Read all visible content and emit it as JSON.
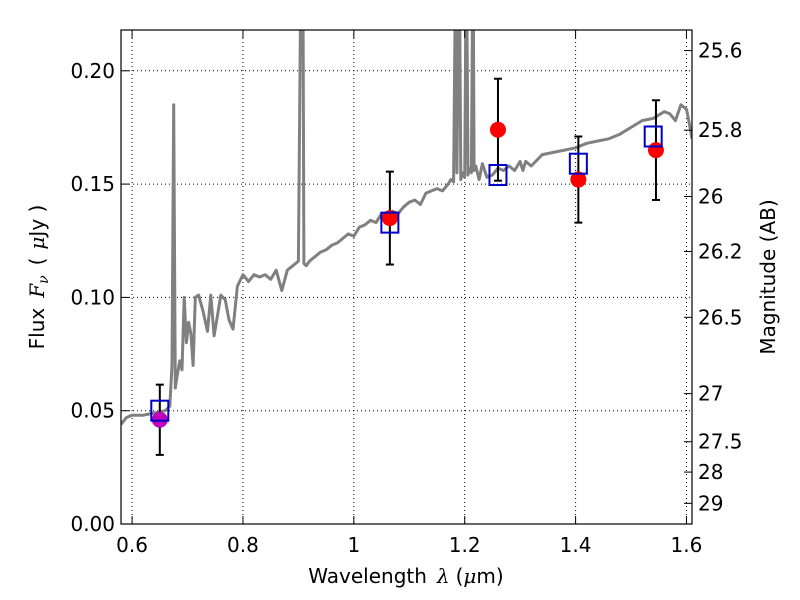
{
  "chart_data": {
    "type": "scatter",
    "xlabel_prefix": "Wavelength",
    "xlabel_symbol": "λ",
    "xlabel_unit_open": "(",
    "xlabel_unit_mu": "μ",
    "xlabel_unit_rest": "m)",
    "ylabel_prefix": "Flux",
    "ylabel_symbol": "F",
    "ylabel_symbol_sub": "ν",
    "ylabel_unit_open": "(",
    "ylabel_unit_mu": "μ",
    "ylabel_unit_rest": "Jy )",
    "ylabel_right": "Magnitude (AB)",
    "xlim": [
      0.58,
      1.61
    ],
    "ylim": [
      0.0,
      0.218
    ],
    "x_ticks": [
      0.6,
      0.8,
      1.0,
      1.2,
      1.4,
      1.6
    ],
    "x_tick_labels": [
      "0.6",
      "0.8",
      "1",
      "1.2",
      "1.4",
      "1.6"
    ],
    "y_ticks": [
      0.0,
      0.05,
      0.1,
      0.15,
      0.2
    ],
    "y_tick_labels": [
      "0.00",
      "0.05",
      "0.10",
      "0.15",
      "0.20"
    ],
    "right_ticks": [
      {
        "mag": 25.6,
        "label": "25.6"
      },
      {
        "mag": 25.8,
        "label": "25.8"
      },
      {
        "mag": 26.0,
        "label": "26"
      },
      {
        "mag": 26.2,
        "label": "26.2"
      },
      {
        "mag": 26.5,
        "label": "26.5"
      },
      {
        "mag": 27.0,
        "label": "27"
      },
      {
        "mag": 27.5,
        "label": "27.5"
      },
      {
        "mag": 28.0,
        "label": "28"
      },
      {
        "mag": 29.0,
        "label": "29"
      }
    ],
    "grid": true,
    "observed": [
      {
        "x": 0.65,
        "y": 0.046,
        "err": 0.0155,
        "color": "#bf00bf"
      },
      {
        "x": 1.065,
        "y": 0.135,
        "err": 0.0205,
        "color": "#ff0000"
      },
      {
        "x": 1.26,
        "y": 0.174,
        "err": 0.0225,
        "color": "#ff0000"
      },
      {
        "x": 1.405,
        "y": 0.152,
        "err": 0.019,
        "color": "#ff0000"
      },
      {
        "x": 1.545,
        "y": 0.165,
        "err": 0.022,
        "color": "#ff0000"
      }
    ],
    "model_photometry": [
      {
        "x": 0.65,
        "y": 0.05
      },
      {
        "x": 1.065,
        "y": 0.133
      },
      {
        "x": 1.26,
        "y": 0.154
      },
      {
        "x": 1.405,
        "y": 0.159
      },
      {
        "x": 1.54,
        "y": 0.171
      }
    ],
    "spectrum": {
      "x": [
        0.58,
        0.59,
        0.6,
        0.62,
        0.64,
        0.66,
        0.668,
        0.672,
        0.675,
        0.678,
        0.681,
        0.686,
        0.69,
        0.694,
        0.698,
        0.702,
        0.706,
        0.71,
        0.714,
        0.72,
        0.728,
        0.736,
        0.742,
        0.748,
        0.754,
        0.76,
        0.768,
        0.775,
        0.782,
        0.79,
        0.8,
        0.81,
        0.82,
        0.83,
        0.84,
        0.85,
        0.86,
        0.87,
        0.88,
        0.89,
        0.9,
        0.905,
        0.908,
        0.91,
        0.914,
        0.92,
        0.93,
        0.94,
        0.95,
        0.96,
        0.97,
        0.98,
        0.99,
        1.0,
        1.01,
        1.02,
        1.03,
        1.04,
        1.05,
        1.06,
        1.07,
        1.08,
        1.09,
        1.1,
        1.11,
        1.12,
        1.13,
        1.14,
        1.15,
        1.16,
        1.17,
        1.175,
        1.18,
        1.184,
        1.186,
        1.19,
        1.193,
        1.196,
        1.2,
        1.203,
        1.206,
        1.208,
        1.212,
        1.215,
        1.217,
        1.22,
        1.226,
        1.232,
        1.24,
        1.25,
        1.26,
        1.27,
        1.28,
        1.29,
        1.3,
        1.305,
        1.31,
        1.32,
        1.34,
        1.36,
        1.38,
        1.4,
        1.42,
        1.44,
        1.46,
        1.48,
        1.5,
        1.52,
        1.54,
        1.56,
        1.57,
        1.58,
        1.59,
        1.6,
        1.605,
        1.61
      ],
      "y": [
        0.044,
        0.047,
        0.048,
        0.048,
        0.049,
        0.05,
        0.052,
        0.07,
        0.185,
        0.06,
        0.065,
        0.072,
        0.068,
        0.1,
        0.08,
        0.089,
        0.084,
        0.07,
        0.1,
        0.101,
        0.094,
        0.085,
        0.101,
        0.083,
        0.092,
        0.101,
        0.099,
        0.09,
        0.086,
        0.105,
        0.11,
        0.107,
        0.11,
        0.109,
        0.11,
        0.108,
        0.112,
        0.103,
        0.112,
        0.114,
        0.116,
        0.26,
        0.26,
        0.115,
        0.114,
        0.116,
        0.118,
        0.12,
        0.121,
        0.123,
        0.124,
        0.126,
        0.128,
        0.127,
        0.131,
        0.132,
        0.134,
        0.133,
        0.137,
        0.136,
        0.138,
        0.137,
        0.14,
        0.142,
        0.143,
        0.141,
        0.146,
        0.147,
        0.148,
        0.147,
        0.15,
        0.152,
        0.151,
        0.26,
        0.155,
        0.26,
        0.152,
        0.155,
        0.153,
        0.26,
        0.154,
        0.157,
        0.155,
        0.26,
        0.156,
        0.158,
        0.152,
        0.159,
        0.153,
        0.154,
        0.157,
        0.156,
        0.158,
        0.156,
        0.16,
        0.156,
        0.16,
        0.158,
        0.163,
        0.164,
        0.165,
        0.166,
        0.168,
        0.169,
        0.17,
        0.172,
        0.175,
        0.178,
        0.179,
        0.182,
        0.181,
        0.178,
        0.185,
        0.183,
        0.177,
        0.17
      ]
    },
    "colors": {
      "spectrum": "#808080",
      "model_box": "#0000c8",
      "errorbar": "#000000"
    }
  }
}
